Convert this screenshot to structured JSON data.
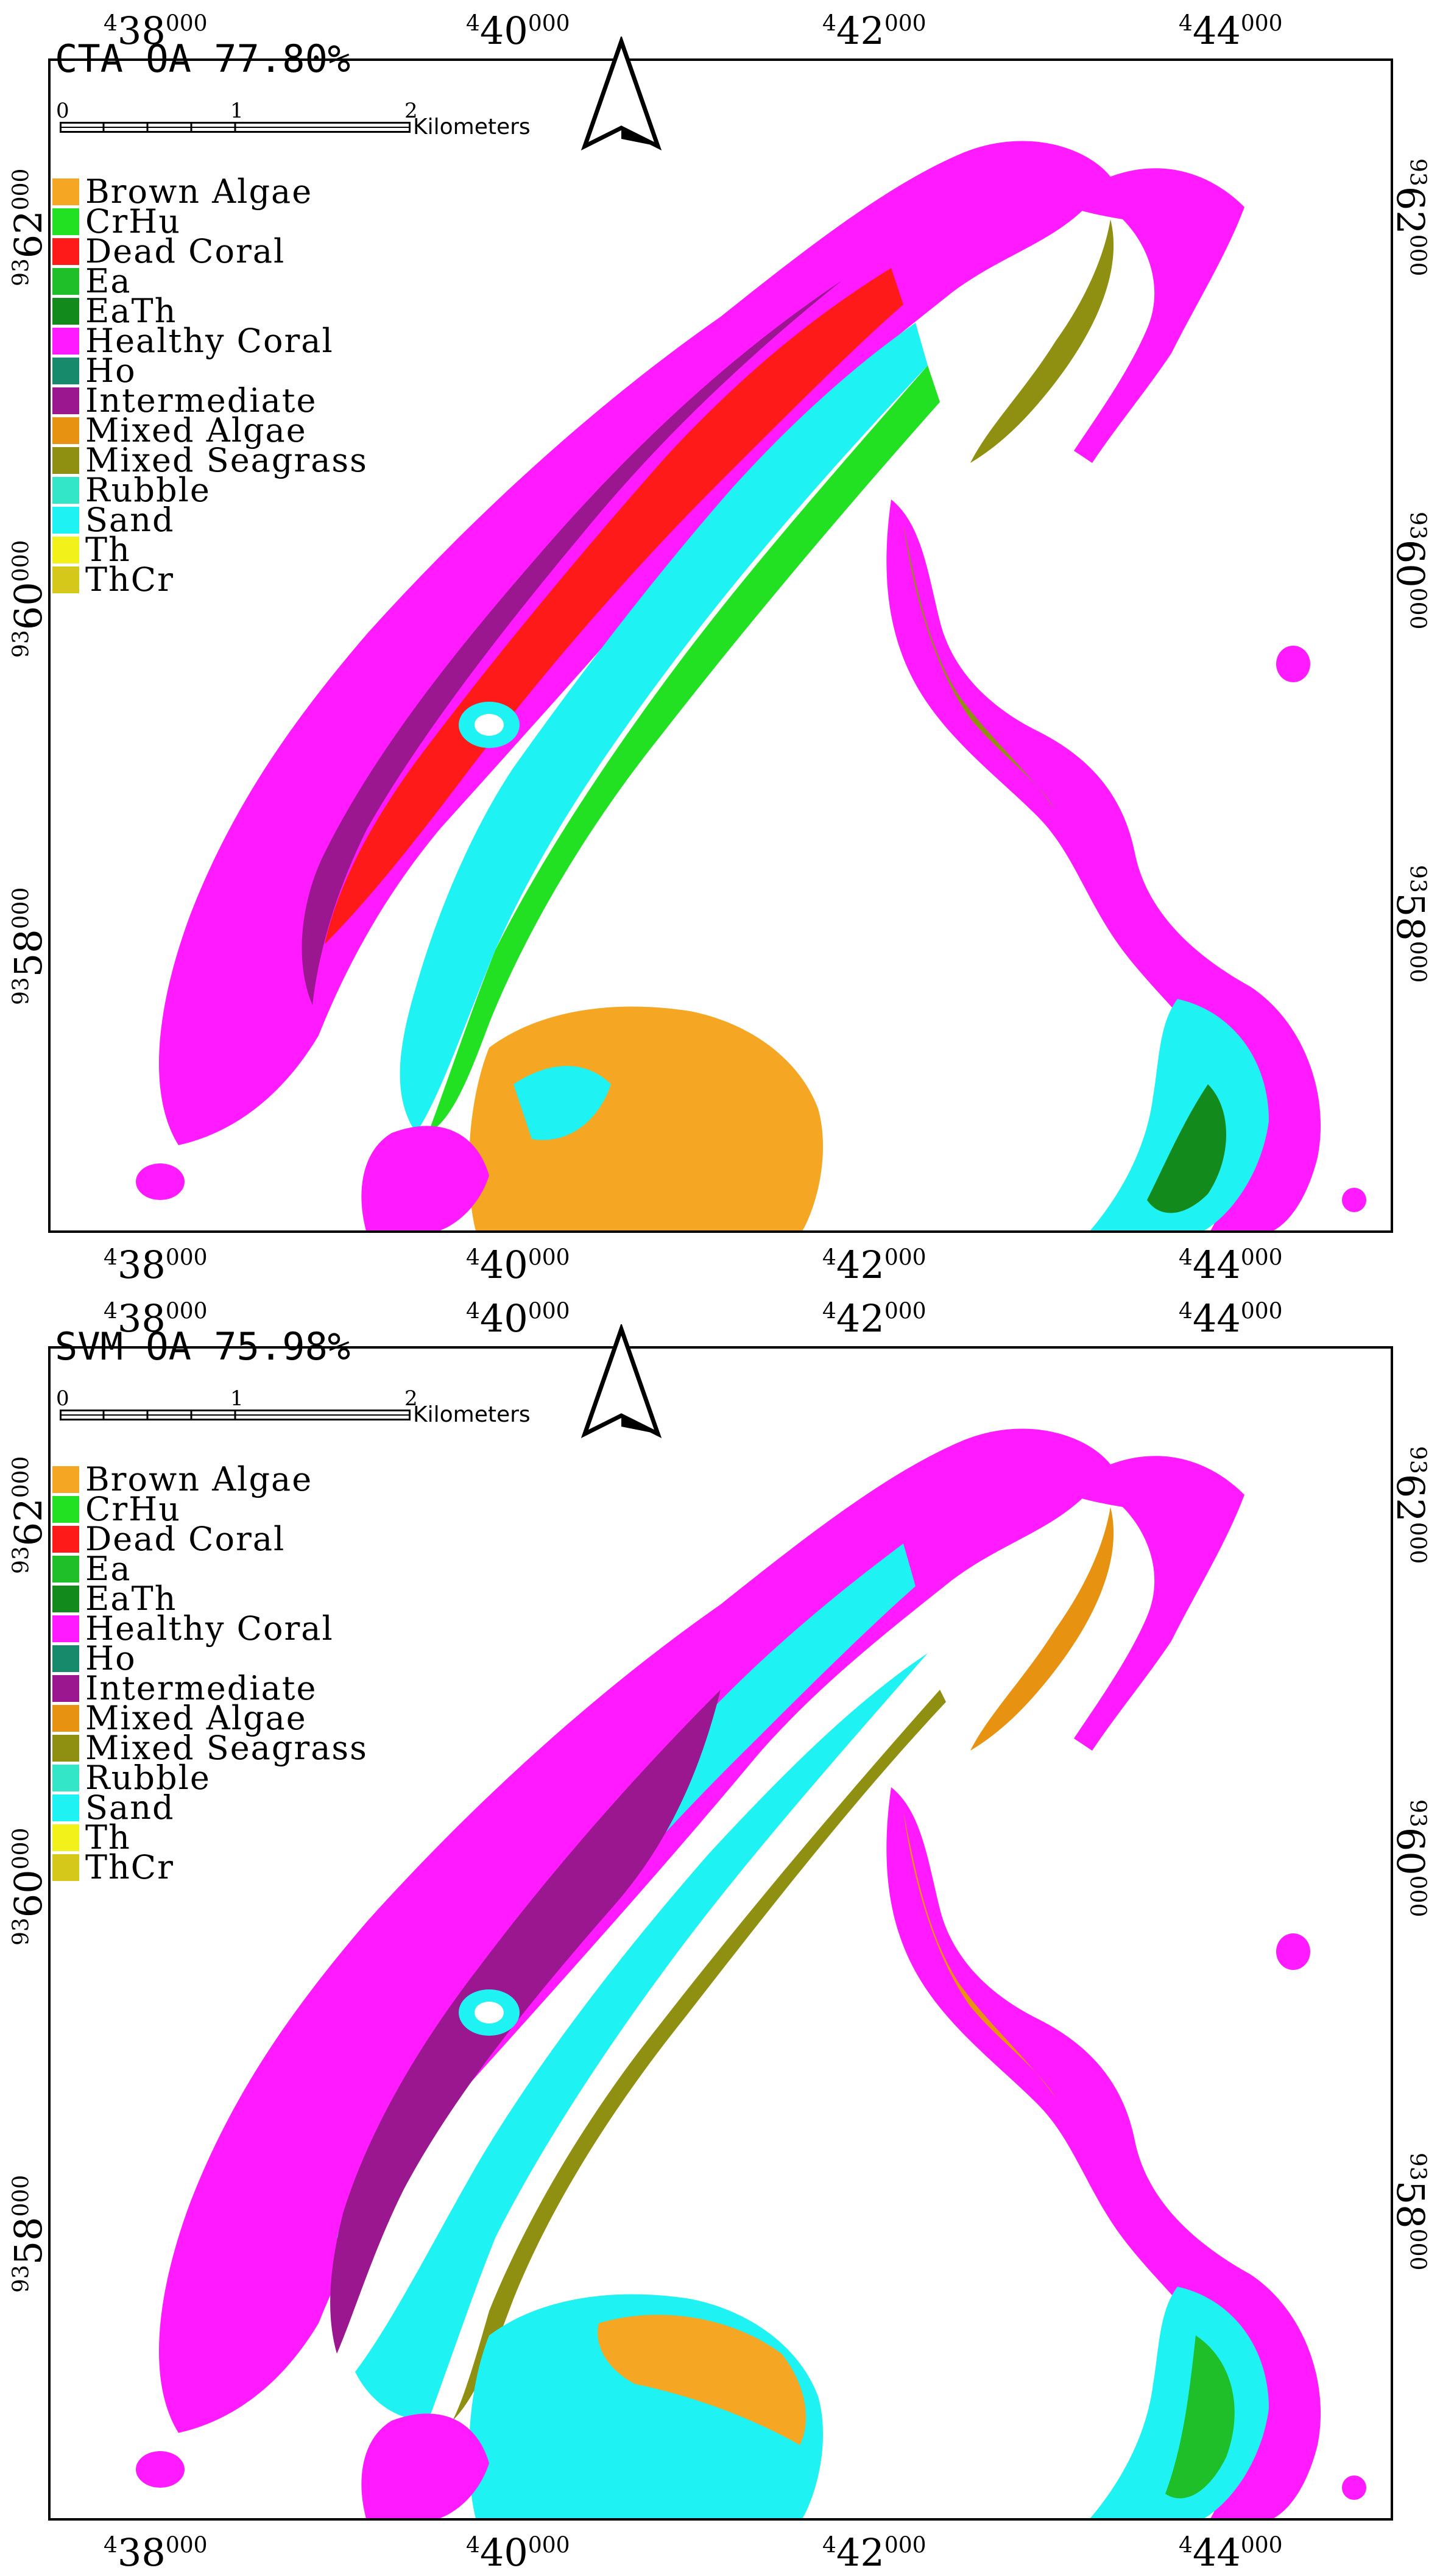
{
  "panels": [
    {
      "title": "CTA OA 77.80%",
      "x_ticks": [
        {
          "sup": "4",
          "main": "38",
          "sub": "000"
        },
        {
          "sup": "4",
          "main": "40",
          "sub": "000"
        },
        {
          "sup": "4",
          "main": "42",
          "sub": "000"
        },
        {
          "sup": "4",
          "main": "44",
          "sub": "000"
        }
      ],
      "y_ticks": [
        {
          "sup": "93",
          "main": "62",
          "sub": "000"
        },
        {
          "sup": "93",
          "main": "60",
          "sub": "000"
        },
        {
          "sup": "93",
          "main": "58",
          "sub": "000"
        }
      ],
      "scale": {
        "labels": [
          "0",
          "1",
          "2"
        ],
        "unit": "Kilometers"
      },
      "north_arrow": "north-arrow-icon"
    },
    {
      "title": "SVM OA 75.98%",
      "x_ticks": [
        {
          "sup": "4",
          "main": "38",
          "sub": "000"
        },
        {
          "sup": "4",
          "main": "40",
          "sub": "000"
        },
        {
          "sup": "4",
          "main": "42",
          "sub": "000"
        },
        {
          "sup": "4",
          "main": "44",
          "sub": "000"
        }
      ],
      "y_ticks": [
        {
          "sup": "93",
          "main": "62",
          "sub": "000"
        },
        {
          "sup": "93",
          "main": "60",
          "sub": "000"
        },
        {
          "sup": "93",
          "main": "58",
          "sub": "000"
        }
      ],
      "scale": {
        "labels": [
          "0",
          "1",
          "2"
        ],
        "unit": "Kilometers"
      },
      "north_arrow": "north-arrow-icon"
    }
  ],
  "legend": [
    {
      "label": "Brown Algae",
      "color": "#f5a623"
    },
    {
      "label": "CrHu",
      "color": "#22e022"
    },
    {
      "label": "Dead Coral",
      "color": "#ff1a1a"
    },
    {
      "label": "Ea",
      "color": "#1fbf2a"
    },
    {
      "label": "EaTh",
      "color": "#138a1c"
    },
    {
      "label": "Healthy Coral",
      "color": "#ff1aff"
    },
    {
      "label": "Ho",
      "color": "#168a6a"
    },
    {
      "label": "Intermediate",
      "color": "#9a178f"
    },
    {
      "label": "Mixed Algae",
      "color": "#e89212"
    },
    {
      "label": "Mixed Seagrass",
      "color": "#8f8f12"
    },
    {
      "label": "Rubble",
      "color": "#33e6c8"
    },
    {
      "label": "Sand",
      "color": "#1ff2f2"
    },
    {
      "label": "Th",
      "color": "#f2f21a"
    },
    {
      "label": "ThCr",
      "color": "#d6c81a"
    }
  ]
}
